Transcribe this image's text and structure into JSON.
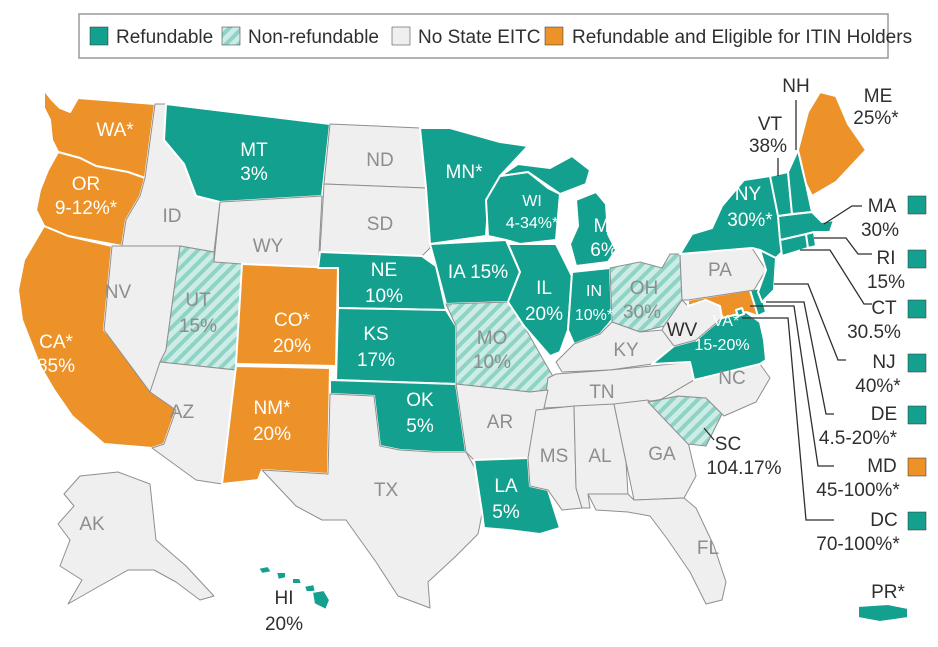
{
  "legend": [
    {
      "label": "Refundable",
      "color": "#13a08e",
      "style": "solid"
    },
    {
      "label": "Non-refundable",
      "color": "#13a08e",
      "style": "hatched"
    },
    {
      "label": "No State EITC",
      "color": "#efefef",
      "style": "solid"
    },
    {
      "label": "Refundable and Eligible for ITIN Holders",
      "color": "#ec9228",
      "style": "solid"
    }
  ],
  "states": {
    "WA": {
      "name": "WA*",
      "value": ""
    },
    "OR": {
      "name": "OR",
      "value": "9-12%*"
    },
    "CA": {
      "name": "CA*",
      "value": "85%"
    },
    "CO": {
      "name": "CO*",
      "value": "20%"
    },
    "NM": {
      "name": "NM*",
      "value": "20%"
    },
    "ME": {
      "name": "ME",
      "value": "25%*"
    },
    "MT": {
      "name": "MT",
      "value": "3%"
    },
    "MN": {
      "name": "MN*",
      "value": ""
    },
    "WI": {
      "name": "WI",
      "value": "4-34%*"
    },
    "MI": {
      "name": "MI",
      "value": "6%"
    },
    "IA": {
      "name": "IA 15%",
      "value": ""
    },
    "IL": {
      "name": "IL",
      "value": "20%"
    },
    "IN": {
      "name": "IN",
      "value": "10%*"
    },
    "NE": {
      "name": "NE",
      "value": "10%"
    },
    "KS": {
      "name": "KS",
      "value": "17%"
    },
    "OK": {
      "name": "OK",
      "value": "5%"
    },
    "LA": {
      "name": "LA",
      "value": "5%"
    },
    "NY": {
      "name": "NY",
      "value": "30%*"
    },
    "VA": {
      "name": "VA*",
      "value": "15-20%"
    },
    "VT": {
      "name": "VT",
      "value": "38%"
    },
    "NH": {
      "name": "NH",
      "value": ""
    },
    "UT": {
      "name": "UT",
      "value": "15%"
    },
    "MO": {
      "name": "MO",
      "value": "10%"
    },
    "OH": {
      "name": "OH",
      "value": "30%"
    },
    "SC": {
      "name": "SC",
      "value": "104.17%"
    },
    "HI": {
      "name": "HI",
      "value": "20%"
    },
    "PR": {
      "name": "PR*",
      "value": ""
    },
    "ND": {
      "name": "ND",
      "value": ""
    },
    "SD": {
      "name": "SD",
      "value": ""
    },
    "ID": {
      "name": "ID",
      "value": ""
    },
    "WY": {
      "name": "WY",
      "value": ""
    },
    "NV": {
      "name": "NV",
      "value": ""
    },
    "AZ": {
      "name": "AZ",
      "value": ""
    },
    "TX": {
      "name": "TX",
      "value": ""
    },
    "AR": {
      "name": "AR",
      "value": ""
    },
    "MS": {
      "name": "MS",
      "value": ""
    },
    "AL": {
      "name": "AL",
      "value": ""
    },
    "GA": {
      "name": "GA",
      "value": ""
    },
    "FL": {
      "name": "FL",
      "value": ""
    },
    "TN": {
      "name": "TN",
      "value": ""
    },
    "KY": {
      "name": "KY",
      "value": ""
    },
    "NC": {
      "name": "NC",
      "value": ""
    },
    "WV": {
      "name": "WV",
      "value": ""
    },
    "PA": {
      "name": "PA",
      "value": ""
    },
    "AK": {
      "name": "AK",
      "value": ""
    }
  },
  "callouts": [
    {
      "name": "MA",
      "value": "30%",
      "category": "refundable"
    },
    {
      "name": "RI",
      "value": "15%",
      "category": "refundable"
    },
    {
      "name": "CT",
      "value": "30.5%",
      "category": "refundable"
    },
    {
      "name": "NJ",
      "value": "40%*",
      "category": "refundable"
    },
    {
      "name": "DE",
      "value": "4.5-20%*",
      "category": "refundable"
    },
    {
      "name": "MD",
      "value": "45-100%*",
      "category": "itin"
    },
    {
      "name": "DC",
      "value": "70-100%*",
      "category": "refundable"
    }
  ]
}
